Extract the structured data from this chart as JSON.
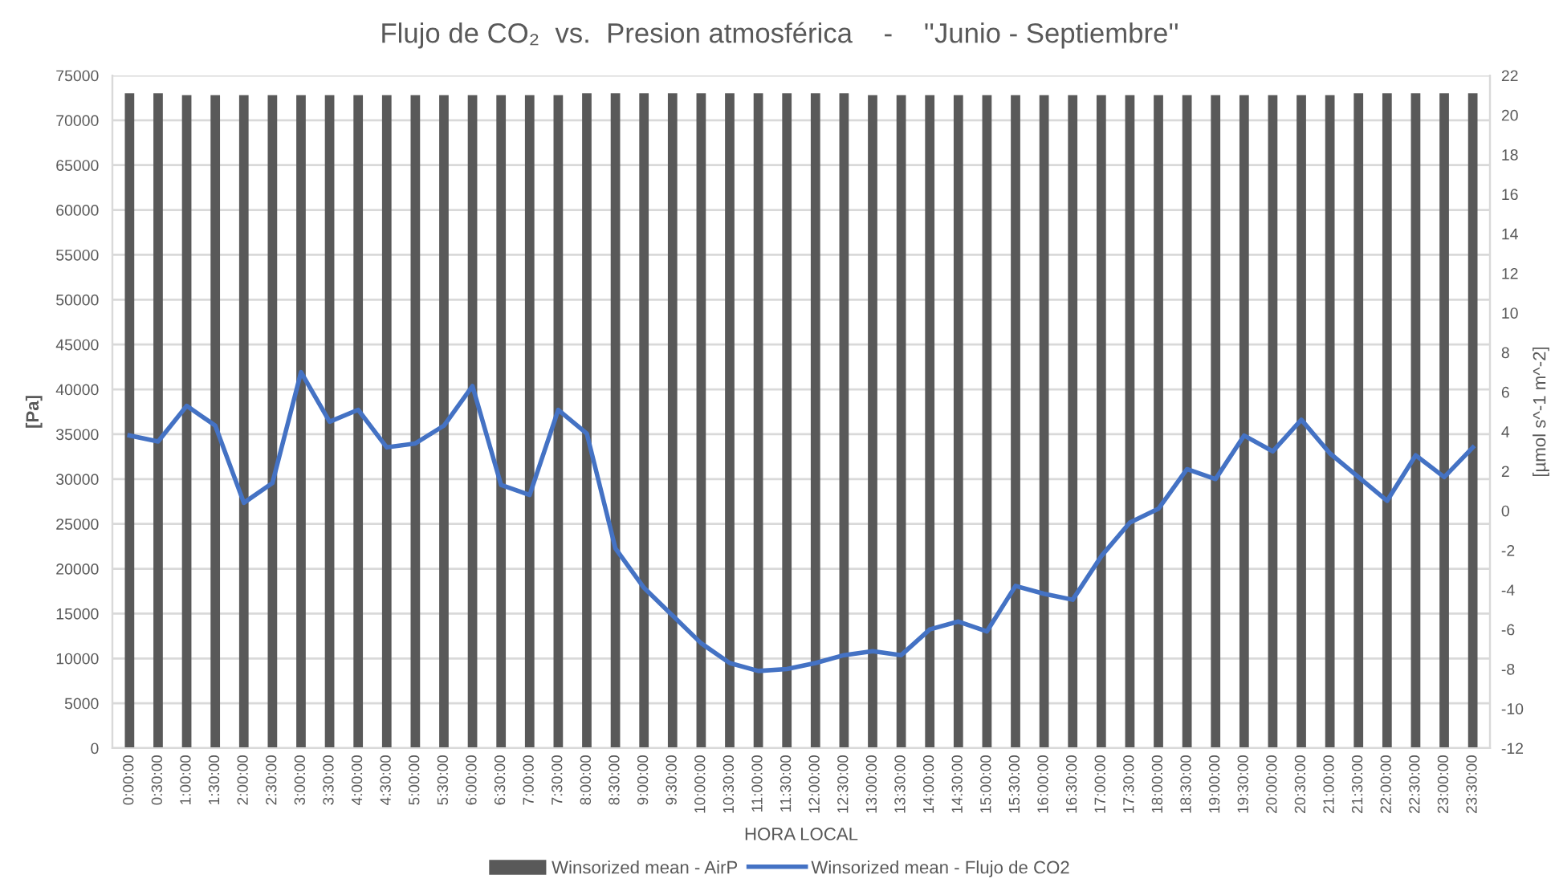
{
  "chart_data": {
    "type": "bar",
    "title": "Flujo de CO₂  vs.  Presion atmosférica    -    ''Junio - Septiembre''",
    "xlabel": "HORA LOCAL",
    "ylabel": "[Pa]",
    "y2label": "[µmol s^-1 m^-2]",
    "categories": [
      "0:00:00",
      "0:30:00",
      "1:00:00",
      "1:30:00",
      "2:00:00",
      "2:30:00",
      "3:00:00",
      "3:30:00",
      "4:00:00",
      "4:30:00",
      "5:00:00",
      "5:30:00",
      "6:00:00",
      "6:30:00",
      "7:00:00",
      "7:30:00",
      "8:00:00",
      "8:30:00",
      "9:00:00",
      "9:30:00",
      "10:00:00",
      "10:30:00",
      "11:00:00",
      "11:30:00",
      "12:00:00",
      "12:30:00",
      "13:00:00",
      "13:30:00",
      "14:00:00",
      "14:30:00",
      "15:00:00",
      "15:30:00",
      "16:00:00",
      "16:30:00",
      "17:00:00",
      "17:30:00",
      "18:00:00",
      "18:30:00",
      "19:00:00",
      "19:30:00",
      "20:00:00",
      "20:30:00",
      "21:00:00",
      "21:30:00",
      "22:00:00",
      "22:30:00",
      "23:00:00",
      "23:30:00"
    ],
    "series": [
      {
        "name": "Winsorized mean - AirP",
        "color": "#595959",
        "values": [
          73000,
          73000,
          72800,
          72800,
          72800,
          72800,
          72800,
          72800,
          72800,
          72800,
          72800,
          72800,
          72800,
          72800,
          72800,
          72800,
          73000,
          73000,
          73000,
          73000,
          73000,
          73000,
          73000,
          73000,
          73000,
          73000,
          72800,
          72800,
          72800,
          72800,
          72800,
          72800,
          72800,
          72800,
          72800,
          72800,
          72800,
          72800,
          72800,
          72800,
          72800,
          72800,
          72800,
          73000,
          73000,
          73000,
          73000,
          73000
        ]
      },
      {
        "name": "Winsorized mean - Flujo de CO2",
        "type": "line",
        "axis": "y2",
        "color": "#4472c4",
        "values": [
          3.8,
          3.5,
          5.3,
          4.3,
          0.4,
          1.4,
          7.0,
          4.5,
          5.1,
          3.2,
          3.4,
          4.3,
          6.3,
          1.3,
          0.8,
          5.1,
          3.9,
          -1.9,
          -3.9,
          -5.3,
          -6.7,
          -7.7,
          -8.1,
          -8.0,
          -7.7,
          -7.3,
          -7.1,
          -7.3,
          -6.0,
          -5.6,
          -6.1,
          -3.8,
          -4.2,
          -4.5,
          -2.3,
          -0.6,
          0.1,
          2.1,
          1.6,
          3.8,
          3.0,
          4.6,
          2.9,
          1.7,
          0.5,
          2.8,
          1.7,
          3.2
        ]
      }
    ],
    "ylim": [
      0,
      75000
    ],
    "yticks": [
      0,
      5000,
      10000,
      15000,
      20000,
      25000,
      30000,
      35000,
      40000,
      45000,
      50000,
      55000,
      60000,
      65000,
      70000,
      75000
    ],
    "y2lim": [
      -12,
      22
    ],
    "y2ticks": [
      -12,
      -10,
      -8,
      -6,
      -4,
      -2,
      0,
      2,
      4,
      6,
      8,
      10,
      12,
      14,
      16,
      18,
      20,
      22
    ],
    "grid": "y",
    "legend": "bottom"
  }
}
